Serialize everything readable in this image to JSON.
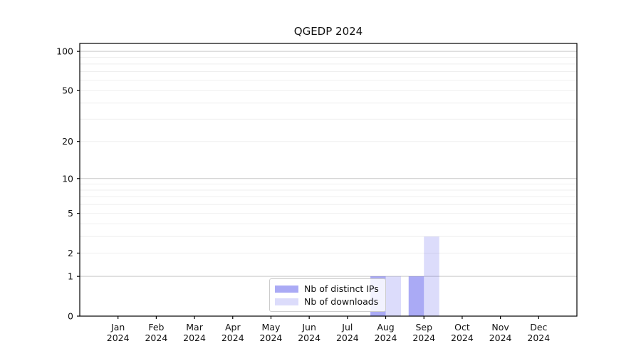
{
  "chart_data": {
    "type": "bar",
    "title": "QGEDP 2024",
    "categories": [
      "Jan",
      "Feb",
      "Mar",
      "Apr",
      "May",
      "Jun",
      "Jul",
      "Aug",
      "Sep",
      "Oct",
      "Nov",
      "Dec"
    ],
    "year_label": "2024",
    "series": [
      {
        "name": "Nb of distinct IPs",
        "color": "rgba(43,43,230,0.4)",
        "values": [
          0,
          0,
          0,
          0,
          0,
          0,
          0,
          1,
          1,
          0,
          0,
          0
        ]
      },
      {
        "name": "Nb of downloads",
        "color": "rgba(43,43,230,0.165)",
        "values": [
          0,
          0,
          0,
          0,
          0,
          0,
          0,
          1,
          3,
          0,
          0,
          0
        ]
      }
    ],
    "y_axis": {
      "scale": "log1p",
      "tick_labels": [
        0,
        1,
        2,
        5,
        10,
        20,
        50,
        100
      ],
      "decade_gridlines": [
        1,
        10,
        100
      ],
      "minor_gridlines": [
        2,
        3,
        4,
        5,
        6,
        7,
        8,
        9,
        20,
        30,
        40,
        50,
        60,
        70,
        80,
        90
      ],
      "max": 115
    },
    "legend": {
      "position": "lower center"
    },
    "grid": true,
    "colors": {
      "decade_grid": "#c9c9c9",
      "minor_grid": "#efefef",
      "axis": "#000000",
      "text": "#111111"
    }
  }
}
